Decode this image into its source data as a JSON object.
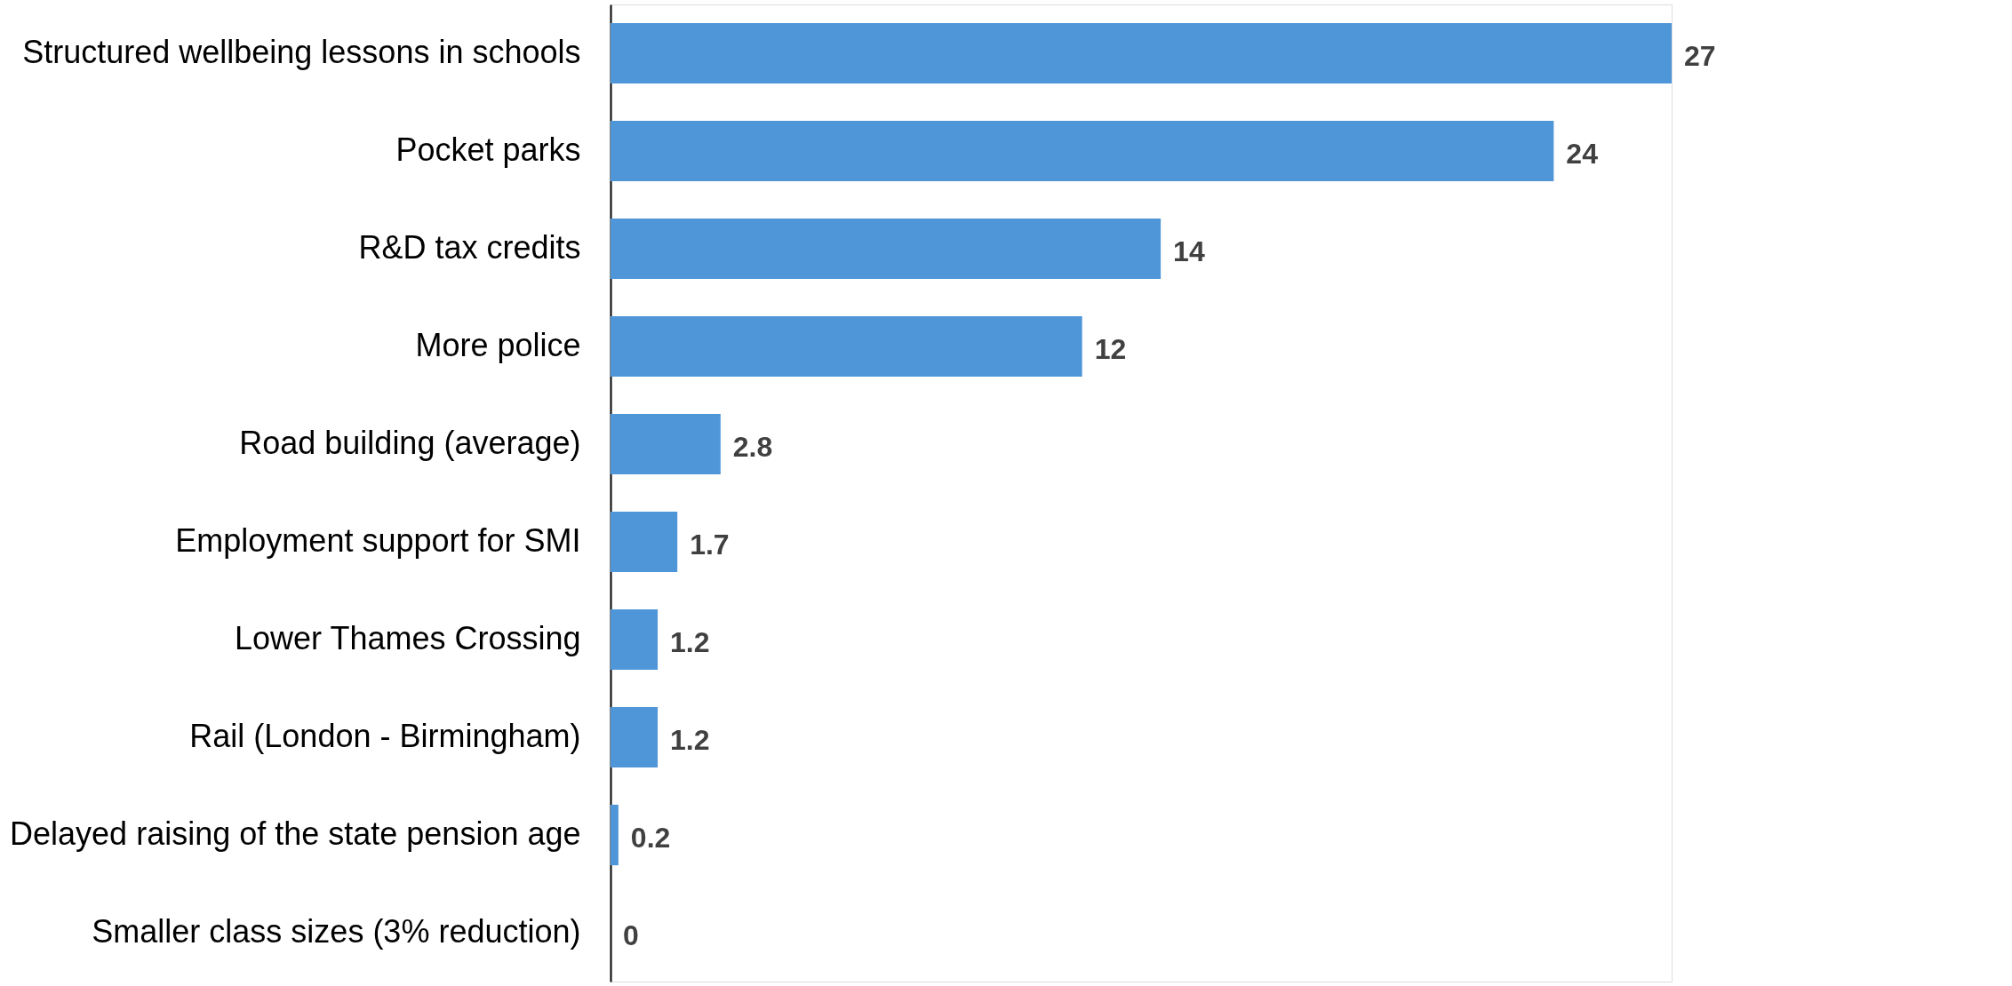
{
  "chart_data": {
    "type": "bar",
    "orientation": "horizontal",
    "data_labels": true,
    "color": "#4f96d9",
    "categories": [
      "Structured wellbeing lessons in schools",
      "Pocket parks",
      "R&D tax credits",
      "More police",
      "Road building (average)",
      "Employment support for SMI",
      "Lower Thames Crossing",
      "Rail (London - Birmingham)",
      "Delayed raising of the state pension age",
      "Smaller class sizes (3% reduction)"
    ],
    "values": [
      27,
      24,
      14,
      12,
      2.8,
      1.7,
      1.2,
      1.2,
      0.2,
      0
    ]
  }
}
